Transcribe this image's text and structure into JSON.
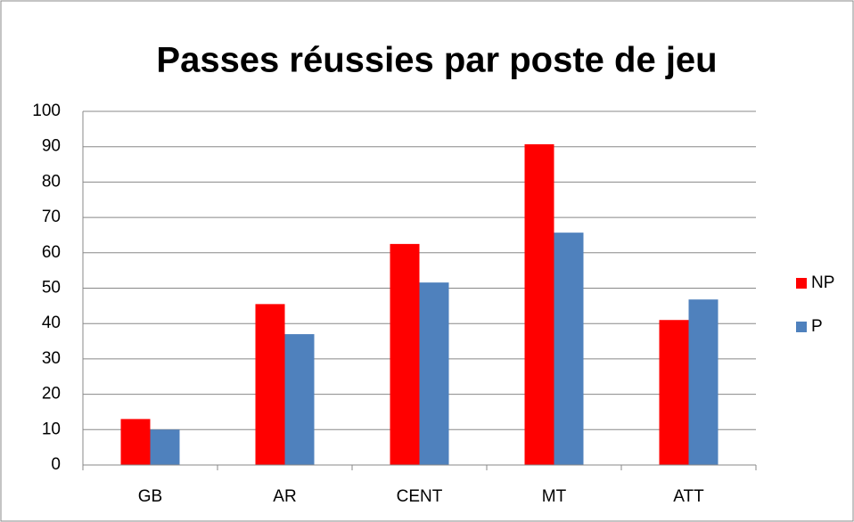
{
  "chart_data": {
    "type": "bar",
    "title": "Passes réussies par poste de jeu",
    "categories": [
      "GB",
      "AR",
      "CENT",
      "MT",
      "ATT"
    ],
    "series": [
      {
        "name": "NP",
        "color": "#ff0000",
        "values": [
          13,
          45.5,
          62.5,
          90.7,
          41
        ]
      },
      {
        "name": "P",
        "color": "#4f81bd",
        "values": [
          10,
          37,
          51.6,
          65.7,
          46.8
        ]
      }
    ],
    "ylim": [
      0,
      100
    ],
    "yticks": [
      0,
      10,
      20,
      30,
      40,
      50,
      60,
      70,
      80,
      90,
      100
    ],
    "grid": true,
    "legend": "right"
  }
}
